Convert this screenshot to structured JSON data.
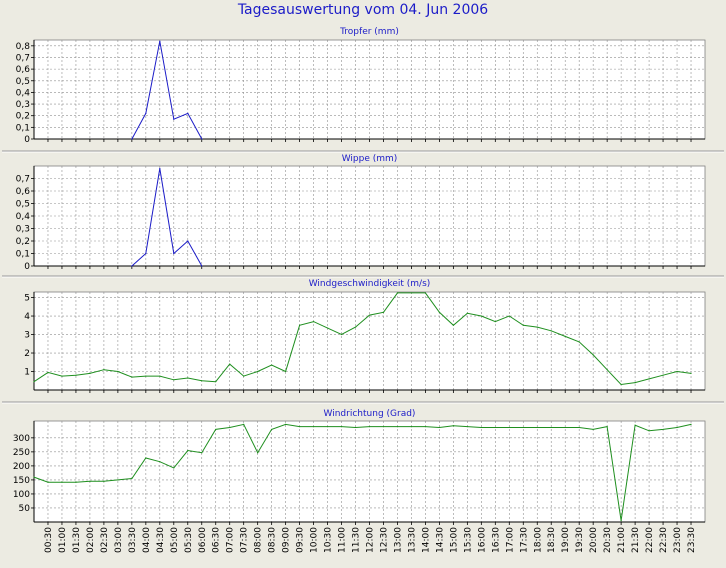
{
  "title": "Tagesauswertung vom 04. Jun 2006",
  "x_time_labels": [
    "00:30",
    "01:00",
    "01:30",
    "02:00",
    "02:30",
    "03:00",
    "03:30",
    "04:00",
    "04:30",
    "05:00",
    "05:30",
    "06:00",
    "06:30",
    "07:00",
    "07:30",
    "08:00",
    "08:30",
    "09:00",
    "09:30",
    "10:00",
    "10:30",
    "11:00",
    "11:30",
    "12:00",
    "12:30",
    "13:00",
    "13:30",
    "14:00",
    "14:30",
    "15:00",
    "15:30",
    "16:00",
    "16:30",
    "17:00",
    "17:30",
    "18:00",
    "18:30",
    "19:00",
    "19:30",
    "20:00",
    "20:30",
    "21:00",
    "21:30",
    "22:00",
    "22:30",
    "23:00",
    "23:30"
  ],
  "colors": {
    "background": "#ecebe2",
    "plot_background": "#ffffff",
    "grid": "#909090",
    "title": "#1c1cc8",
    "panel_title": "#1c1cc8",
    "rain_line": "#1c1cc8",
    "wind_line": "#1f8f1f",
    "divider": "#9a9a9a"
  },
  "chart_data": [
    {
      "type": "line",
      "title": "Tropfer (mm)",
      "ylim": [
        0,
        0.85
      ],
      "yticks": [
        0,
        0.1,
        0.2,
        0.3,
        0.4,
        0.5,
        0.6,
        0.7,
        0.8
      ],
      "ytick_labels": [
        "0",
        "0,1",
        "0,2",
        "0,3",
        "0,4",
        "0,5",
        "0,6",
        "0,7",
        "0,8"
      ],
      "grid": true,
      "series": [
        {
          "color": "rain_line",
          "points": [
            {
              "x": "03:30",
              "y": 0
            },
            {
              "x": "04:00",
              "y": 0.22
            },
            {
              "x": "04:30",
              "y": 0.84
            },
            {
              "x": "05:00",
              "y": 0.17
            },
            {
              "x": "05:30",
              "y": 0.22
            },
            {
              "x": "06:00",
              "y": 0
            }
          ]
        }
      ]
    },
    {
      "type": "line",
      "title": "Wippe (mm)",
      "ylim": [
        0,
        0.8
      ],
      "yticks": [
        0,
        0.1,
        0.2,
        0.3,
        0.4,
        0.5,
        0.6,
        0.7
      ],
      "ytick_labels": [
        "0",
        "0,1",
        "0,2",
        "0,3",
        "0,4",
        "0,5",
        "0,6",
        "0,7"
      ],
      "grid": true,
      "series": [
        {
          "color": "rain_line",
          "points": [
            {
              "x": "03:30",
              "y": 0
            },
            {
              "x": "04:00",
              "y": 0.1
            },
            {
              "x": "04:30",
              "y": 0.78
            },
            {
              "x": "05:00",
              "y": 0.1
            },
            {
              "x": "05:30",
              "y": 0.2
            },
            {
              "x": "06:00",
              "y": 0
            }
          ]
        }
      ]
    },
    {
      "type": "line",
      "title": "Windgeschwindigkeit (m/s)",
      "ylim": [
        0,
        5.3
      ],
      "yticks": [
        1,
        2,
        3,
        4,
        5
      ],
      "ytick_labels": [
        "1",
        "2",
        "3",
        "4",
        "5"
      ],
      "grid": true,
      "series": [
        {
          "color": "wind_line",
          "points": [
            {
              "x": "00:00",
              "y": 0.45
            },
            {
              "x": "00:30",
              "y": 0.95
            },
            {
              "x": "01:00",
              "y": 0.75
            },
            {
              "x": "01:30",
              "y": 0.8
            },
            {
              "x": "02:00",
              "y": 0.9
            },
            {
              "x": "02:30",
              "y": 1.1
            },
            {
              "x": "03:00",
              "y": 1.0
            },
            {
              "x": "03:30",
              "y": 0.7
            },
            {
              "x": "04:00",
              "y": 0.75
            },
            {
              "x": "04:30",
              "y": 0.75
            },
            {
              "x": "05:00",
              "y": 0.55
            },
            {
              "x": "05:30",
              "y": 0.65
            },
            {
              "x": "06:00",
              "y": 0.5
            },
            {
              "x": "06:30",
              "y": 0.45
            },
            {
              "x": "07:00",
              "y": 1.4
            },
            {
              "x": "07:30",
              "y": 0.75
            },
            {
              "x": "08:00",
              "y": 1.0
            },
            {
              "x": "08:30",
              "y": 1.35
            },
            {
              "x": "09:00",
              "y": 1.0
            },
            {
              "x": "09:30",
              "y": 3.5
            },
            {
              "x": "10:00",
              "y": 3.7
            },
            {
              "x": "10:30",
              "y": 3.35
            },
            {
              "x": "11:00",
              "y": 3.0
            },
            {
              "x": "11:30",
              "y": 3.4
            },
            {
              "x": "12:00",
              "y": 4.05
            },
            {
              "x": "12:30",
              "y": 4.2
            },
            {
              "x": "13:00",
              "y": 5.25
            },
            {
              "x": "13:30",
              "y": 5.25
            },
            {
              "x": "14:00",
              "y": 5.25
            },
            {
              "x": "14:30",
              "y": 4.2
            },
            {
              "x": "15:00",
              "y": 3.5
            },
            {
              "x": "15:30",
              "y": 4.15
            },
            {
              "x": "16:00",
              "y": 4.0
            },
            {
              "x": "16:30",
              "y": 3.7
            },
            {
              "x": "17:00",
              "y": 4.0
            },
            {
              "x": "17:30",
              "y": 3.5
            },
            {
              "x": "18:00",
              "y": 3.4
            },
            {
              "x": "18:30",
              "y": 3.2
            },
            {
              "x": "19:00",
              "y": 2.9
            },
            {
              "x": "19:30",
              "y": 2.6
            },
            {
              "x": "20:00",
              "y": 1.9
            },
            {
              "x": "20:30",
              "y": 1.1
            },
            {
              "x": "21:00",
              "y": 0.3
            },
            {
              "x": "21:30",
              "y": 0.4
            },
            {
              "x": "22:00",
              "y": 0.6
            },
            {
              "x": "22:30",
              "y": 0.8
            },
            {
              "x": "23:00",
              "y": 1.0
            },
            {
              "x": "23:30",
              "y": 0.9
            }
          ]
        }
      ]
    },
    {
      "type": "line",
      "title": "Windrichtung (Grad)",
      "ylim": [
        0,
        360
      ],
      "yticks": [
        50,
        100,
        150,
        200,
        250,
        300
      ],
      "ytick_labels": [
        "50",
        "100",
        "150",
        "200",
        "250",
        "300"
      ],
      "grid": true,
      "series": [
        {
          "color": "wind_line",
          "points": [
            {
              "x": "00:00",
              "y": 160
            },
            {
              "x": "00:30",
              "y": 142
            },
            {
              "x": "01:00",
              "y": 142
            },
            {
              "x": "01:30",
              "y": 142
            },
            {
              "x": "02:00",
              "y": 145
            },
            {
              "x": "02:30",
              "y": 145
            },
            {
              "x": "03:00",
              "y": 150
            },
            {
              "x": "03:30",
              "y": 155
            },
            {
              "x": "04:00",
              "y": 228
            },
            {
              "x": "04:30",
              "y": 215
            },
            {
              "x": "05:00",
              "y": 193
            },
            {
              "x": "05:30",
              "y": 255
            },
            {
              "x": "06:00",
              "y": 247
            },
            {
              "x": "06:30",
              "y": 330
            },
            {
              "x": "07:00",
              "y": 337
            },
            {
              "x": "07:30",
              "y": 348
            },
            {
              "x": "08:00",
              "y": 247
            },
            {
              "x": "08:30",
              "y": 330
            },
            {
              "x": "09:00",
              "y": 348
            },
            {
              "x": "09:30",
              "y": 340
            },
            {
              "x": "10:00",
              "y": 340
            },
            {
              "x": "10:30",
              "y": 340
            },
            {
              "x": "11:00",
              "y": 340
            },
            {
              "x": "11:30",
              "y": 337
            },
            {
              "x": "12:00",
              "y": 340
            },
            {
              "x": "12:30",
              "y": 340
            },
            {
              "x": "13:00",
              "y": 340
            },
            {
              "x": "13:30",
              "y": 340
            },
            {
              "x": "14:00",
              "y": 340
            },
            {
              "x": "14:30",
              "y": 337
            },
            {
              "x": "15:00",
              "y": 343
            },
            {
              "x": "15:30",
              "y": 340
            },
            {
              "x": "16:00",
              "y": 337
            },
            {
              "x": "16:30",
              "y": 337
            },
            {
              "x": "17:00",
              "y": 337
            },
            {
              "x": "17:30",
              "y": 337
            },
            {
              "x": "18:00",
              "y": 337
            },
            {
              "x": "18:30",
              "y": 337
            },
            {
              "x": "19:00",
              "y": 337
            },
            {
              "x": "19:30",
              "y": 337
            },
            {
              "x": "20:00",
              "y": 330
            },
            {
              "x": "20:30",
              "y": 340
            },
            {
              "x": "21:00",
              "y": 5
            },
            {
              "x": "21:30",
              "y": 345
            },
            {
              "x": "22:00",
              "y": 325
            },
            {
              "x": "22:30",
              "y": 330
            },
            {
              "x": "23:00",
              "y": 337
            },
            {
              "x": "23:30",
              "y": 348
            }
          ]
        }
      ]
    }
  ]
}
